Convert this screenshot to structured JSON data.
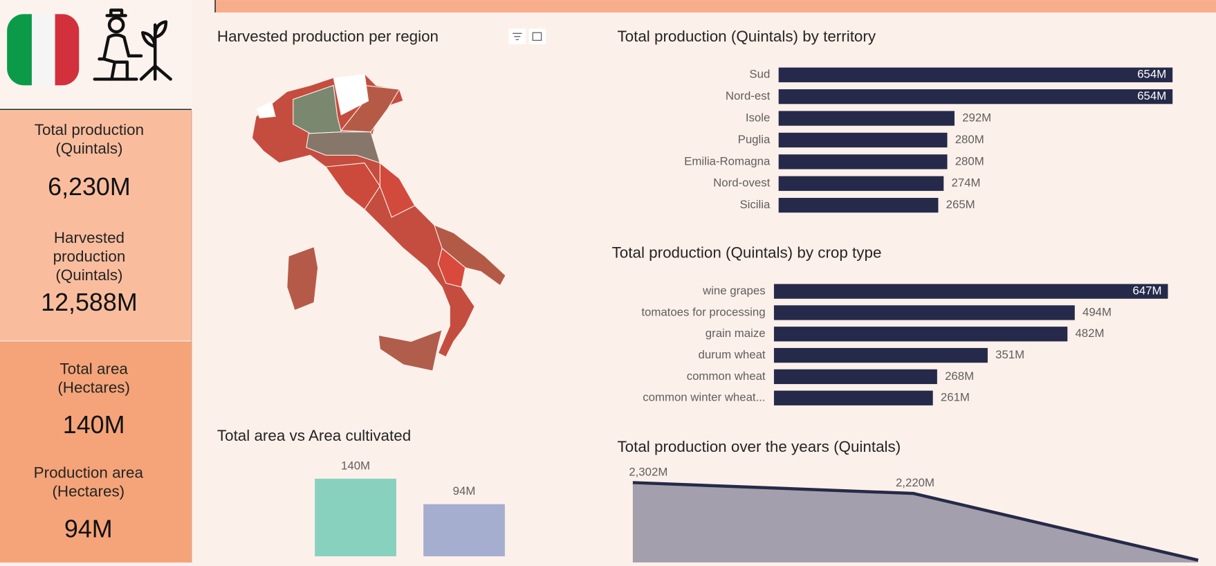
{
  "kpis": [
    {
      "label": "Total production (Quintals)",
      "value": "6,230M"
    },
    {
      "label": "Harvested production (Quintals)",
      "value": "12,588M"
    },
    {
      "label": "Total area (Hectares)",
      "value": "140M"
    },
    {
      "label": "Production area (Hectares)",
      "value": "94M"
    }
  ],
  "chart_data": [
    {
      "type": "map",
      "title": "Harvested production per region"
    },
    {
      "type": "hbar",
      "title": "Total production (Quintals) by territory",
      "categories": [
        "Sud",
        "Nord-est",
        "Isole",
        "Puglia",
        "Emilia-Romagna",
        "Nord-ovest",
        "Sicilia"
      ],
      "values": [
        654,
        654,
        292,
        280,
        280,
        274,
        265
      ],
      "value_labels": [
        "654M",
        "654M",
        "292M",
        "280M",
        "280M",
        "274M",
        "265M"
      ],
      "color": "#252a4a"
    },
    {
      "type": "hbar",
      "title": "Total production (Quintals) by crop type",
      "categories": [
        "wine grapes",
        "tomatoes for processing",
        "grain maize",
        "durum wheat",
        "common wheat",
        "common winter wheat..."
      ],
      "values": [
        647,
        494,
        482,
        351,
        268,
        261
      ],
      "value_labels": [
        "647M",
        "494M",
        "482M",
        "351M",
        "268M",
        "261M"
      ],
      "color": "#252a4a"
    },
    {
      "type": "column",
      "title": "Total area vs Area cultivated",
      "categories": [
        null,
        null
      ],
      "values": [
        140,
        94
      ],
      "value_labels": [
        "140M",
        "94M"
      ],
      "colors": [
        "#88d1bf",
        "#a5aecf"
      ]
    },
    {
      "type": "area",
      "title": "Total production over the years (Quintals)",
      "categories": [
        null,
        null,
        null
      ],
      "values": [
        2302,
        2220,
        1716
      ],
      "value_labels": [
        "2,302M",
        "2,220M",
        null
      ],
      "color": "#a39fac",
      "line_color": "#252a48"
    }
  ]
}
